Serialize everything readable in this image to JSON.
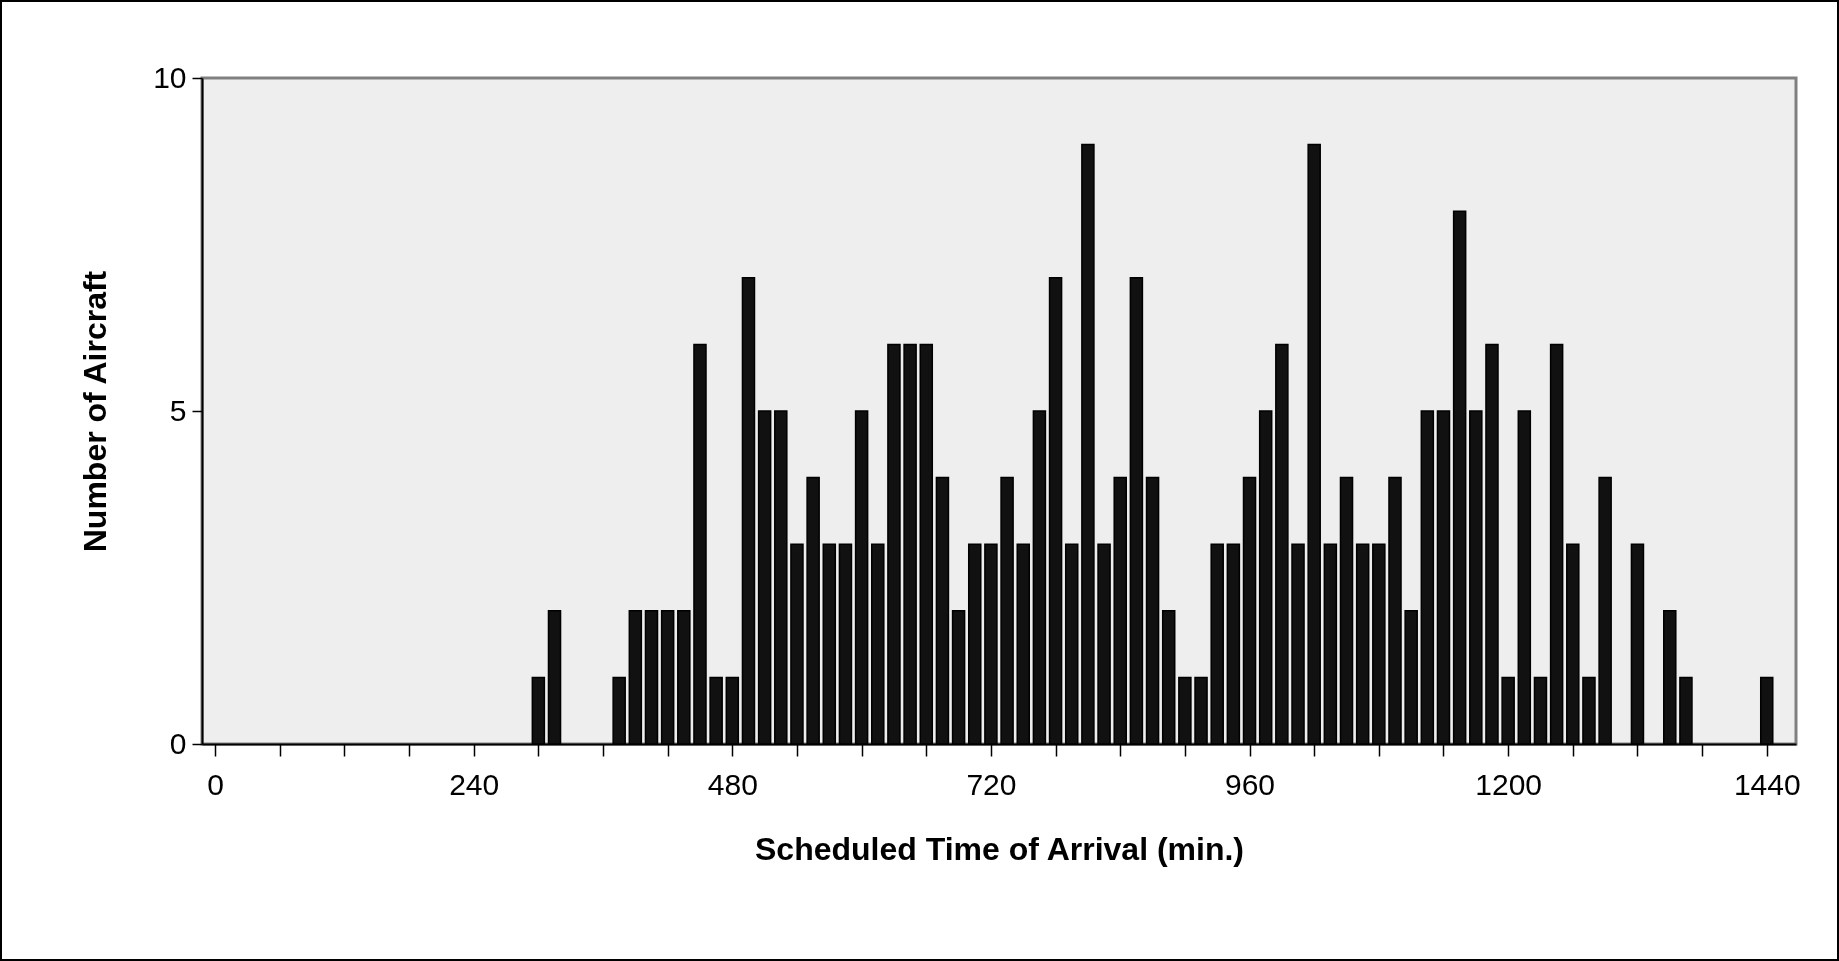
{
  "chart_data": {
    "type": "bar",
    "xlabel": "Scheduled Time of Arrival (min.)",
    "ylabel": "Number of  Aircraft",
    "color": "#111111",
    "x": [
      300,
      315,
      375,
      390,
      405,
      420,
      435,
      450,
      465,
      480,
      495,
      510,
      525,
      540,
      555,
      570,
      585,
      600,
      615,
      630,
      645,
      660,
      675,
      690,
      705,
      720,
      735,
      750,
      765,
      780,
      795,
      810,
      825,
      840,
      855,
      870,
      885,
      900,
      915,
      930,
      945,
      960,
      975,
      990,
      1005,
      1020,
      1035,
      1050,
      1065,
      1080,
      1095,
      1110,
      1125,
      1140,
      1155,
      1170,
      1185,
      1200,
      1215,
      1230,
      1245,
      1260,
      1275,
      1290,
      1320,
      1350,
      1365,
      1440
    ],
    "values": [
      1,
      2,
      1,
      2,
      2,
      2,
      2,
      6,
      1,
      1,
      7,
      5,
      5,
      3,
      4,
      3,
      3,
      5,
      3,
      6,
      6,
      6,
      4,
      2,
      3,
      3,
      4,
      3,
      5,
      7,
      3,
      9,
      3,
      4,
      7,
      4,
      2,
      1,
      1,
      3,
      3,
      4,
      5,
      6,
      3,
      9,
      3,
      4,
      3,
      3,
      4,
      2,
      5,
      5,
      8,
      5,
      6,
      1,
      5,
      1,
      6,
      3,
      1,
      4,
      3,
      2,
      1,
      1
    ],
    "xlim": [
      -7.5,
      1462.5
    ],
    "xticks": [
      0,
      {
        "value": 60,
        "label": null
      },
      {
        "value": 120,
        "label": null
      },
      {
        "value": 180,
        "label": null
      },
      240,
      {
        "value": 300,
        "label": null
      },
      {
        "value": 360,
        "label": null
      },
      {
        "value": 420,
        "label": null
      },
      480,
      {
        "value": 540,
        "label": null
      },
      {
        "value": 600,
        "label": null
      },
      {
        "value": 660,
        "label": null
      },
      720,
      {
        "value": 780,
        "label": null
      },
      {
        "value": 840,
        "label": null
      },
      {
        "value": 900,
        "label": null
      },
      960,
      {
        "value": 1020,
        "label": null
      },
      {
        "value": 1080,
        "label": null
      },
      {
        "value": 1140,
        "label": null
      },
      1200,
      {
        "value": 1260,
        "label": null
      },
      {
        "value": 1320,
        "label": null
      },
      {
        "value": 1380,
        "label": null
      },
      1440
    ],
    "ylim": [
      0,
      10
    ],
    "yticks": [
      0,
      5,
      10
    ]
  }
}
